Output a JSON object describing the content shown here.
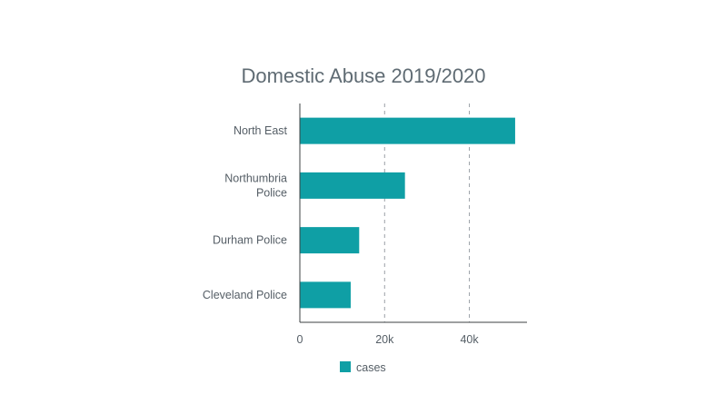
{
  "chart_data": {
    "type": "bar",
    "orientation": "horizontal",
    "title": "Domestic Abuse 2019/2020",
    "xlabel": "",
    "ylabel": "",
    "categories": [
      [
        "North East"
      ],
      [
        "Northumbria",
        "Police"
      ],
      [
        "Durham Police"
      ],
      [
        "Cleveland Police"
      ]
    ],
    "series": [
      {
        "name": "cases",
        "color": "#0f9fa5",
        "values": [
          50800,
          24800,
          14000,
          12000
        ]
      }
    ],
    "xlim": [
      0,
      53600
    ],
    "xticks": [
      0,
      20000,
      40000
    ],
    "xtick_labels": [
      "0",
      "20k",
      "40k"
    ],
    "grid": "vertical-dashed",
    "legend": "bottom"
  }
}
